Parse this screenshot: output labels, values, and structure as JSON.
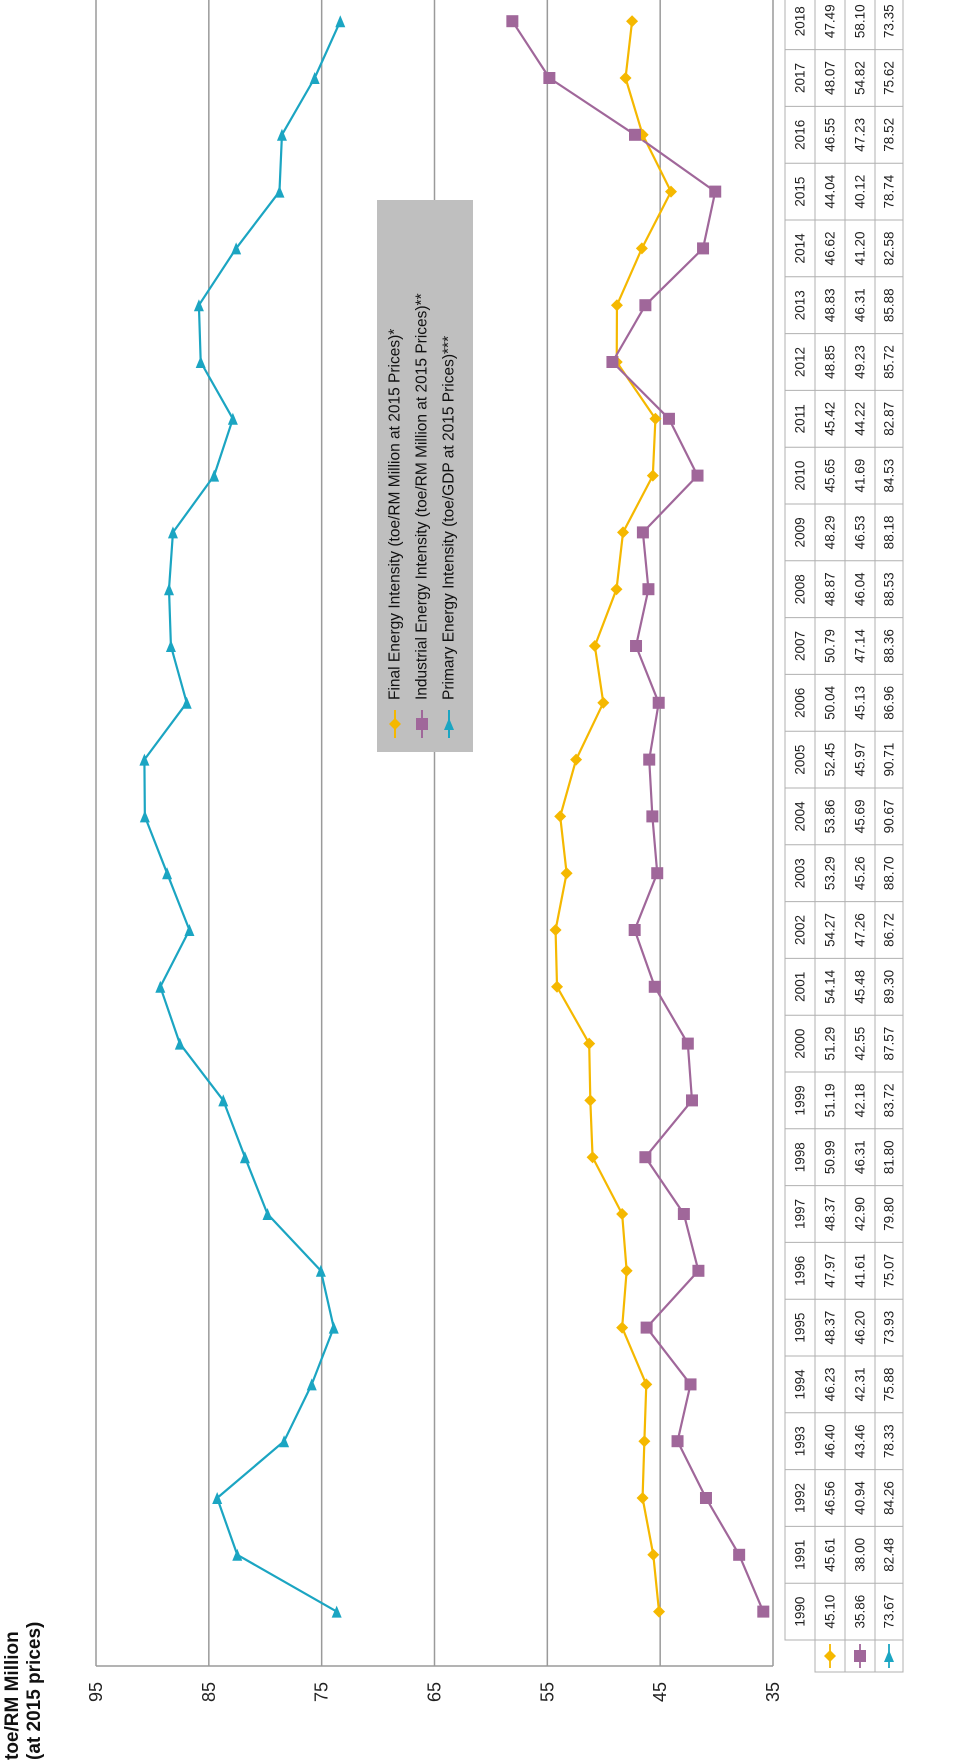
{
  "chart_data": {
    "type": "line",
    "ylabel_line1": "toe/RM Million",
    "ylabel_line2": "(at 2015 prices)",
    "ylim": [
      35,
      95
    ],
    "yticks": [
      35,
      45,
      55,
      65,
      75,
      85,
      95
    ],
    "grid": true,
    "legend_position": "center",
    "x": [
      "1990",
      "1991",
      "1992",
      "1993",
      "1994",
      "1995",
      "1996",
      "1997",
      "1998",
      "1999",
      "2000",
      "2001",
      "2002",
      "2003",
      "2004",
      "2005",
      "2006",
      "2007",
      "2008",
      "2009",
      "2010",
      "2011",
      "2012",
      "2013",
      "2014",
      "2015",
      "2016",
      "2017",
      "2018"
    ],
    "series": [
      {
        "name": "Final Energy Intensity (toe/RM Million at 2015 Prices)*",
        "color": "#f5b800",
        "marker": "diamond",
        "values": [
          45.1,
          45.61,
          46.56,
          46.4,
          46.23,
          48.37,
          47.97,
          48.37,
          50.99,
          51.19,
          51.29,
          54.14,
          54.27,
          53.29,
          53.86,
          52.45,
          50.04,
          50.79,
          48.87,
          48.29,
          45.65,
          45.42,
          48.85,
          48.83,
          46.62,
          44.04,
          46.55,
          48.07,
          47.49
        ],
        "labels": [
          "45.10",
          "45.61",
          "46.56",
          "46.40",
          "46.23",
          "48.37",
          "47.97",
          "48.37",
          "50.99",
          "51.19",
          "51.29",
          "54.14",
          "54.27",
          "53.29",
          "53.86",
          "52.45",
          "50.04",
          "50.79",
          "48.87",
          "48.29",
          "45.65",
          "45.42",
          "48.85",
          "48.83",
          "46.62",
          "44.04",
          "46.55",
          "48.07",
          "47.49"
        ]
      },
      {
        "name": "Industrial Energy Intensity (toe/RM Million at 2015 Prices)**",
        "color": "#a0679a",
        "marker": "square",
        "values": [
          35.86,
          38.0,
          40.94,
          43.46,
          42.31,
          46.2,
          41.61,
          42.9,
          46.31,
          42.18,
          42.55,
          45.48,
          47.26,
          45.26,
          45.69,
          45.97,
          45.13,
          47.14,
          46.04,
          46.53,
          41.69,
          44.22,
          49.23,
          46.31,
          41.2,
          40.12,
          47.23,
          54.82,
          58.1
        ],
        "labels": [
          "35.86",
          "38.00",
          "40.94",
          "43.46",
          "42.31",
          "46.20",
          "41.61",
          "42.90",
          "46.31",
          "42.18",
          "42.55",
          "45.48",
          "47.26",
          "45.26",
          "45.69",
          "45.97",
          "45.13",
          "47.14",
          "46.04",
          "46.53",
          "41.69",
          "44.22",
          "49.23",
          "46.31",
          "41.20",
          "40.12",
          "47.23",
          "54.82",
          "58.10"
        ]
      },
      {
        "name": "Primary Energy Intensity (toe/GDP at 2015 Prices)***",
        "color": "#1ba5c2",
        "marker": "triangle",
        "values": [
          73.67,
          82.48,
          84.26,
          78.33,
          75.88,
          73.93,
          75.07,
          79.8,
          81.8,
          83.72,
          87.57,
          89.3,
          86.72,
          88.7,
          90.67,
          90.71,
          86.96,
          88.36,
          88.53,
          88.18,
          84.53,
          82.87,
          85.72,
          85.88,
          82.58,
          78.74,
          78.52,
          75.62,
          73.35
        ],
        "labels": [
          "73.67",
          "82.48",
          "84.26",
          "78.33",
          "75.88",
          "73.93",
          "75.07",
          "79.80",
          "81.80",
          "83.72",
          "87.57",
          "89.30",
          "86.72",
          "88.70",
          "90.67",
          "90.71",
          "86.96",
          "88.36",
          "88.53",
          "88.18",
          "84.53",
          "82.87",
          "85.72",
          "85.88",
          "82.58",
          "78.74",
          "78.52",
          "75.62",
          "73.35"
        ]
      }
    ]
  }
}
